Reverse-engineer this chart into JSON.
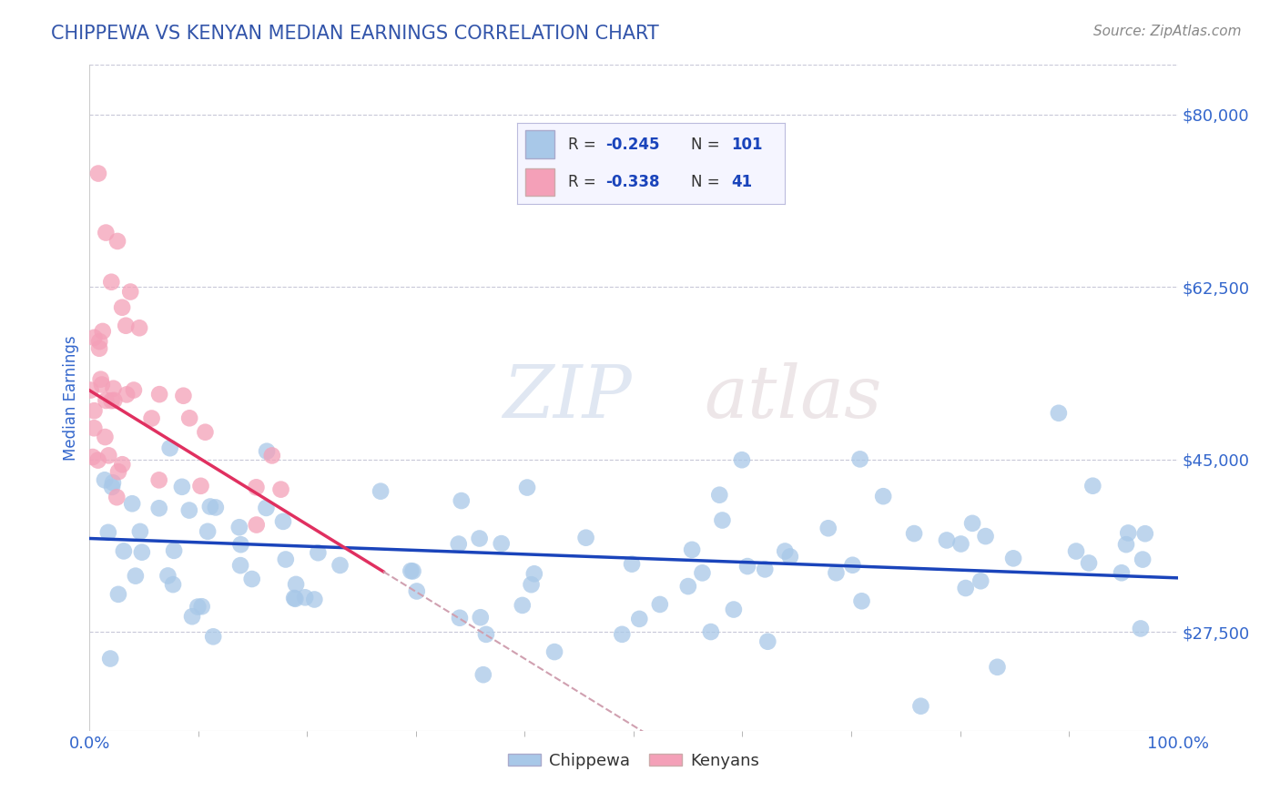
{
  "title": "CHIPPEWA VS KENYAN MEDIAN EARNINGS CORRELATION CHART",
  "source_text": "Source: ZipAtlas.com",
  "ylabel": "Median Earnings",
  "x_min": 0.0,
  "x_max": 100.0,
  "y_min": 17500,
  "y_max": 85000,
  "y_ticks": [
    27500,
    45000,
    62500,
    80000
  ],
  "y_tick_labels": [
    "$27,500",
    "$45,000",
    "$62,500",
    "$80,000"
  ],
  "x_tick_labels": [
    "0.0%",
    "100.0%"
  ],
  "chippewa_color": "#a8c8e8",
  "kenyan_color": "#f4a0b8",
  "chippewa_line_color": "#1a44bb",
  "kenyan_line_color": "#e03060",
  "kenyan_dash_color": "#d0a0b0",
  "chippewa_R": "-0.245",
  "chippewa_N": "101",
  "kenyan_R": "-0.338",
  "kenyan_N": "41",
  "background_color": "#ffffff",
  "grid_color": "#c8c8d8",
  "title_color": "#3355aa",
  "tick_label_color": "#3366cc",
  "watermark_zip": "ZIP",
  "watermark_atlas": "atlas",
  "legend_box_color": "#f5f5ff",
  "legend_border_color": "#bbbbdd"
}
